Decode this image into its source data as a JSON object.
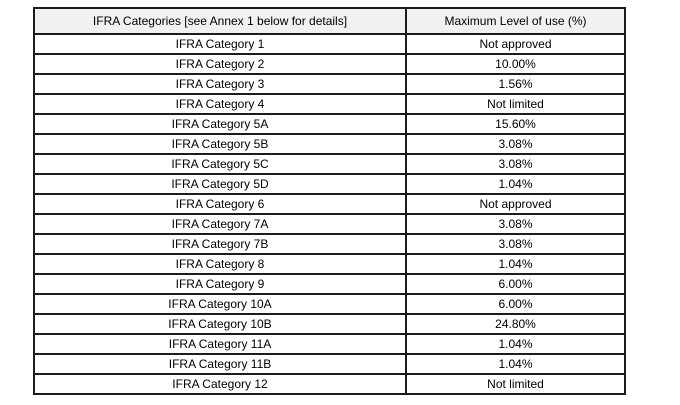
{
  "document": {
    "table": {
      "columns": [
        {
          "label": "IFRA Categories [see Annex 1 below for details]"
        },
        {
          "label": "Maximum Level of use (%)"
        }
      ],
      "rows": [
        [
          "IFRA Category 1",
          "Not approved"
        ],
        [
          "IFRA Category 2",
          "10.00%"
        ],
        [
          "IFRA Category 3",
          "1.56%"
        ],
        [
          "IFRA Category 4",
          "Not limited"
        ],
        [
          "IFRA Category 5A",
          "15.60%"
        ],
        [
          "IFRA Category 5B",
          "3.08%"
        ],
        [
          "IFRA Category 5C",
          "3.08%"
        ],
        [
          "IFRA Category 5D",
          "1.04%"
        ],
        [
          "IFRA Category 6",
          "Not approved"
        ],
        [
          "IFRA Category 7A",
          "3.08%"
        ],
        [
          "IFRA Category 7B",
          "3.08%"
        ],
        [
          "IFRA Category 8",
          "1.04%"
        ],
        [
          "IFRA Category 9",
          "6.00%"
        ],
        [
          "IFRA Category 10A",
          "6.00%"
        ],
        [
          "IFRA Category 10B",
          "24.80%"
        ],
        [
          "IFRA Category 11A",
          "1.04%"
        ],
        [
          "IFRA Category 11B",
          "1.04%"
        ],
        [
          "IFRA Category 12",
          "Not limited"
        ]
      ]
    },
    "colors": {
      "page_bg": "#ffffff",
      "header_bg": "#f1f1f1",
      "border": "#1c1c1c",
      "text": "#000000"
    }
  }
}
